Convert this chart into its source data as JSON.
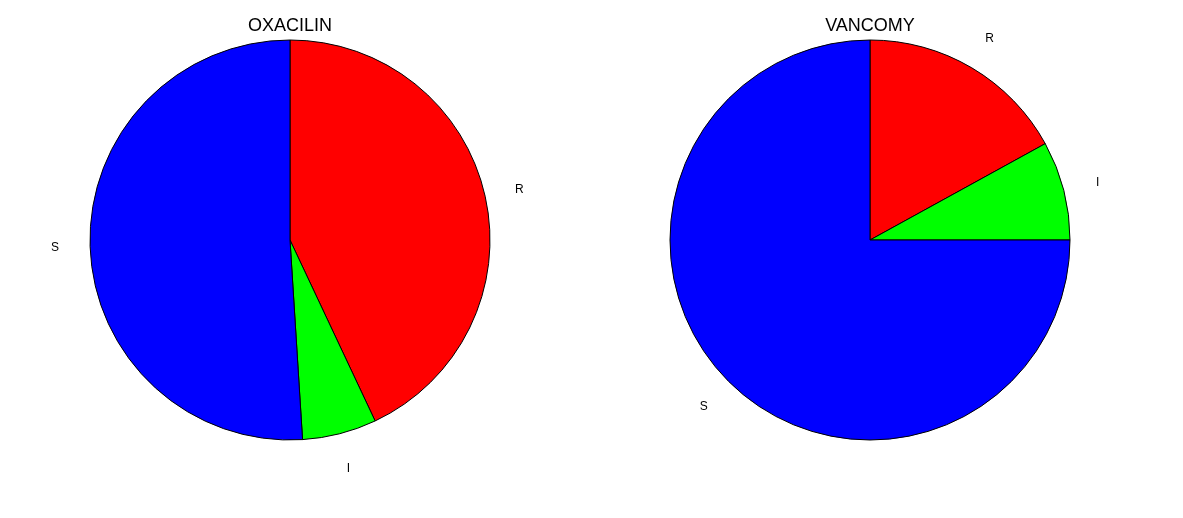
{
  "chart_data": [
    {
      "type": "pie",
      "title": "OXACILIN",
      "categories": [
        "R",
        "I",
        "S"
      ],
      "values": [
        43,
        6,
        51
      ],
      "colors": [
        "#ff0000",
        "#00ff00",
        "#0000ff"
      ],
      "legend": false
    },
    {
      "type": "pie",
      "title": "VANCOMY",
      "categories": [
        "R",
        "I",
        "S"
      ],
      "values": [
        17,
        8,
        75
      ],
      "colors": [
        "#ff0000",
        "#00ff00",
        "#0000ff"
      ],
      "legend": false
    }
  ]
}
